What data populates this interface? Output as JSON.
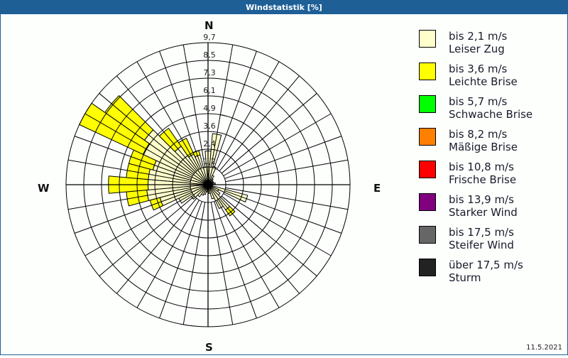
{
  "window": {
    "title": "Windstatistik [%]"
  },
  "footer": {
    "date": "11.5.2021"
  },
  "compass": {
    "n": "N",
    "e": "E",
    "s": "S",
    "w": "W"
  },
  "ring_labels": [
    "1,2",
    "2,4",
    "3,6",
    "4,9",
    "6,1",
    "7,3",
    "8,5",
    "9,7"
  ],
  "legend": [
    {
      "range": "bis 2,1 m/s",
      "name": "Leiser Zug",
      "color": "#ffffcc"
    },
    {
      "range": "bis 3,6 m/s",
      "name": "Leichte Brise",
      "color": "#ffff00"
    },
    {
      "range": "bis 5,7 m/s",
      "name": "Schwache Brise",
      "color": "#00ff00"
    },
    {
      "range": "bis 8,2 m/s",
      "name": "Mäßige Brise",
      "color": "#ff8000"
    },
    {
      "range": "bis 10,8 m/s",
      "name": "Frische Brise",
      "color": "#ff0000"
    },
    {
      "range": "bis 13,9 m/s",
      "name": "Starker Wind",
      "color": "#800080"
    },
    {
      "range": "bis 17,5 m/s",
      "name": "Steifer Wind",
      "color": "#666666"
    },
    {
      "range": "über 17,5 m/s",
      "name": "Sturm",
      "color": "#222222"
    }
  ],
  "chart_data": {
    "type": "polar-bar (wind rose, stacked)",
    "title": "Windstatistik [%]",
    "unit": "%",
    "rmax": 9.7,
    "ring_ticks": [
      1.2,
      2.4,
      3.6,
      4.9,
      6.1,
      7.3,
      8.5,
      9.7
    ],
    "sector_width_deg": 10,
    "directions_deg": [
      0,
      10,
      20,
      30,
      40,
      50,
      60,
      70,
      80,
      90,
      100,
      110,
      120,
      130,
      140,
      150,
      160,
      170,
      180,
      190,
      200,
      210,
      220,
      230,
      240,
      250,
      260,
      270,
      280,
      290,
      300,
      310,
      320,
      330,
      340,
      350
    ],
    "series": [
      {
        "name": "bis 2,1 m/s (Leiser Zug)",
        "color": "#ffffcc",
        "values": [
          2.3,
          3.5,
          1.3,
          0.7,
          0.5,
          0.4,
          0.4,
          0.4,
          0.5,
          0.3,
          0.3,
          2.8,
          0.8,
          1.0,
          2.1,
          1.8,
          1.0,
          0.6,
          0.4,
          0.5,
          0.7,
          0.8,
          1.0,
          1.4,
          2.2,
          3.4,
          4.2,
          4.1,
          4.1,
          3.9,
          4.9,
          5.3,
          3.2,
          2.3,
          2.1,
          1.2
        ]
      },
      {
        "name": "bis 3,6 m/s (Leichte Brise)",
        "color": "#ffff00",
        "values": [
          0,
          0,
          0,
          0,
          0,
          0,
          0,
          0,
          0,
          0,
          0,
          0,
          0,
          0,
          0.5,
          0,
          0,
          0,
          0,
          0,
          0,
          0,
          0,
          0,
          0,
          0.7,
          1.4,
          2.7,
          1.5,
          1.7,
          4.8,
          3.3,
          1.5,
          1.2,
          0.3,
          0
        ]
      },
      {
        "name": "bis 5,7 m/s (Schwache Brise)",
        "color": "#00ff00",
        "values": []
      },
      {
        "name": "bis 8,2 m/s (Mäßige Brise)",
        "color": "#ff8000",
        "values": []
      },
      {
        "name": "bis 10,8 m/s (Frische Brise)",
        "color": "#ff0000",
        "values": []
      },
      {
        "name": "bis 13,9 m/s (Starker Wind)",
        "color": "#800080",
        "values": []
      },
      {
        "name": "bis 17,5 m/s (Steifer Wind)",
        "color": "#666666",
        "values": []
      },
      {
        "name": "über 17,5 m/s (Sturm)",
        "color": "#222222",
        "values": []
      }
    ],
    "legend_position": "right",
    "grid": true
  }
}
